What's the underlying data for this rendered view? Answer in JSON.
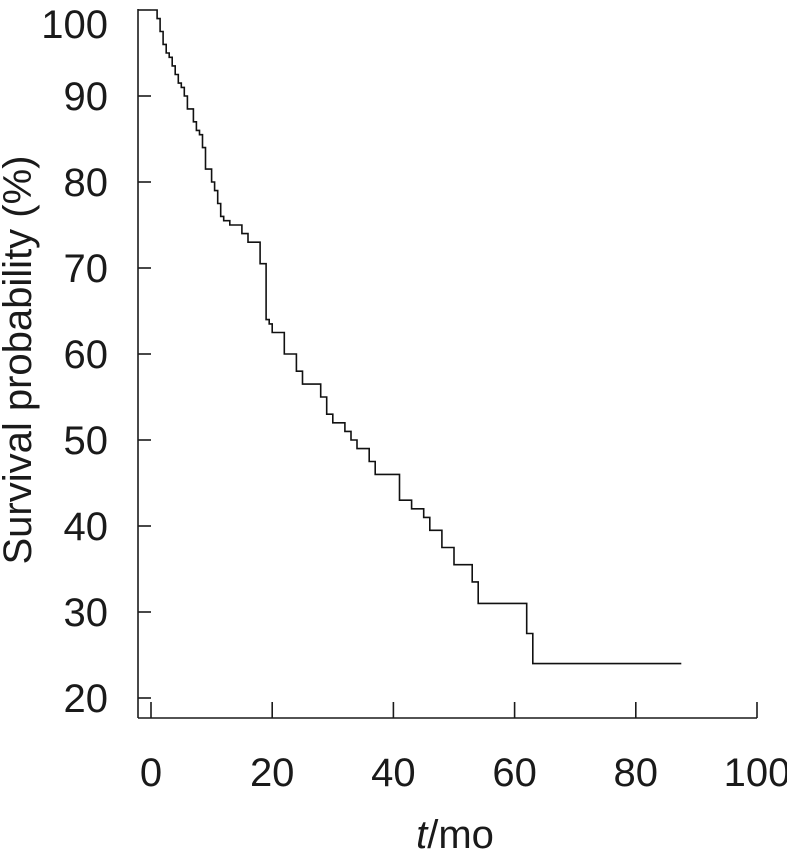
{
  "chart_data": {
    "type": "line",
    "title": "",
    "xlabel_italic": "t",
    "xlabel_rest": "/mo",
    "ylabel": "Survival probability (%)",
    "xlim": [
      0,
      100
    ],
    "ylim": [
      20,
      100
    ],
    "x_ticks": [
      0,
      20,
      40,
      60,
      80,
      100
    ],
    "y_ticks": [
      20,
      30,
      40,
      50,
      60,
      70,
      80,
      90,
      100
    ],
    "grid": false,
    "legend": "none",
    "series": [
      {
        "line_style": "step",
        "x": [
          0,
          1,
          1.5,
          2,
          2.5,
          3,
          3.5,
          4,
          4.5,
          5,
          5.5,
          6,
          7,
          7.5,
          8,
          8.5,
          9,
          10,
          10.5,
          11,
          11.5,
          12,
          13,
          15,
          16,
          18,
          19,
          19.5,
          20,
          22,
          24,
          25,
          28,
          29,
          30,
          32,
          33,
          34,
          36,
          37,
          41,
          43,
          45,
          46,
          48,
          50,
          53,
          54,
          62,
          63,
          64,
          87.5
        ],
        "y": [
          100,
          99,
          97.5,
          96,
          95,
          94.5,
          93.5,
          92.5,
          91.5,
          91,
          90,
          88.5,
          87,
          86,
          85.5,
          84,
          81.5,
          80,
          79,
          77.5,
          76,
          75.5,
          75,
          74,
          73,
          70.5,
          64,
          63.5,
          62.5,
          60,
          58,
          56.5,
          55,
          53,
          52,
          51,
          50,
          49,
          47.5,
          46,
          43,
          42,
          41,
          39.5,
          37.5,
          35.5,
          33.5,
          31,
          27.5,
          24,
          24,
          24
        ]
      }
    ]
  },
  "colors": {
    "curve": "#111111",
    "axis": "#1a1a1a",
    "background": "#ffffff"
  }
}
